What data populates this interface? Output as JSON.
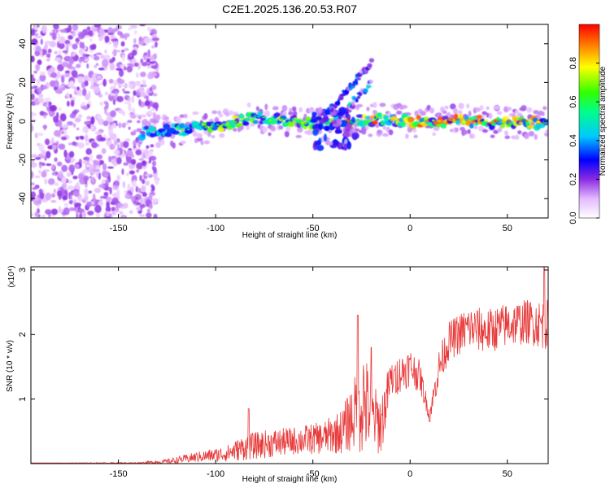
{
  "title": "C2E1.2025.136.20.53.R07",
  "chart_data": [
    {
      "type": "heatmap",
      "xlabel": "Height of straight line (km)",
      "ylabel": "Frequency (Hz)",
      "xlim": [
        -195,
        71
      ],
      "ylim": [
        -50,
        50
      ],
      "xticks": [
        -150,
        -100,
        -50,
        0,
        50
      ],
      "yticks": [
        -40,
        -20,
        0,
        20,
        40
      ],
      "colorbar": {
        "label": "Normalized spectral amplitude",
        "range": [
          0,
          1
        ],
        "ticks": [
          0.0,
          0.2,
          0.4,
          0.6,
          0.8
        ]
      },
      "features": [
        {
          "kind": "noise",
          "x_range": [
            -195,
            -130
          ],
          "y_range": [
            -50,
            50
          ],
          "amplitude": 0.15
        },
        {
          "kind": "band",
          "x_range": [
            -138,
            71
          ],
          "center_hz": [
            [
              -138,
              -6
            ],
            [
              -100,
              -3
            ],
            [
              -80,
              2
            ],
            [
              -60,
              0
            ],
            [
              -45,
              -2
            ],
            [
              -30,
              0
            ],
            [
              -15,
              1
            ],
            [
              0,
              0
            ],
            [
              30,
              0
            ],
            [
              71,
              -1
            ]
          ],
          "amplitude": 0.55
        },
        {
          "kind": "ridge",
          "from": [
            -42,
            5
          ],
          "to": [
            -20,
            30
          ],
          "amplitude": 0.3
        },
        {
          "kind": "ridge",
          "from": [
            -40,
            -2
          ],
          "to": [
            -20,
            20
          ],
          "amplitude": 0.4
        },
        {
          "kind": "blob_cluster",
          "x_range": [
            -50,
            -28
          ],
          "y_range": [
            -14,
            6
          ],
          "amplitude": 0.25
        }
      ]
    },
    {
      "type": "line",
      "xlabel": "Height of straight line (km)",
      "ylabel": "SNR (10 * v/v)",
      "y_multiplier": "(x10⁴)",
      "xlim": [
        -195,
        71
      ],
      "ylim": [
        0,
        3.05
      ],
      "xticks": [
        -150,
        -100,
        -50,
        0,
        50
      ],
      "yticks": [
        1,
        2,
        3
      ],
      "series": [
        {
          "color": "#e83a3a",
          "envelope_x": [
            -195,
            -140,
            -125,
            -110,
            -95,
            -85,
            -75,
            -60,
            -45,
            -35,
            -28,
            -24,
            -20,
            -15,
            -10,
            -5,
            0,
            5,
            10,
            15,
            20,
            30,
            40,
            50,
            60,
            71
          ],
          "envelope_mean": [
            0.01,
            0.01,
            0.03,
            0.1,
            0.15,
            0.25,
            0.3,
            0.35,
            0.4,
            0.5,
            0.8,
            1.0,
            0.75,
            0.6,
            1.3,
            1.4,
            1.5,
            1.35,
            0.75,
            1.5,
            1.9,
            2.1,
            2.05,
            2.15,
            2.2,
            2.15
          ],
          "envelope_spread": [
            0.0,
            0.01,
            0.04,
            0.08,
            0.12,
            0.2,
            0.22,
            0.22,
            0.25,
            0.35,
            0.6,
            0.9,
            0.5,
            0.5,
            0.3,
            0.3,
            0.3,
            0.25,
            0.1,
            0.3,
            0.3,
            0.35,
            0.35,
            0.35,
            0.35,
            0.4
          ],
          "peaks": [
            [
              -83,
              0.85
            ],
            [
              -27,
              2.3
            ],
            [
              -20,
              1.8
            ],
            [
              -8,
              1.45
            ],
            [
              10,
              0.65
            ],
            [
              69,
              3.05
            ]
          ]
        }
      ]
    }
  ]
}
